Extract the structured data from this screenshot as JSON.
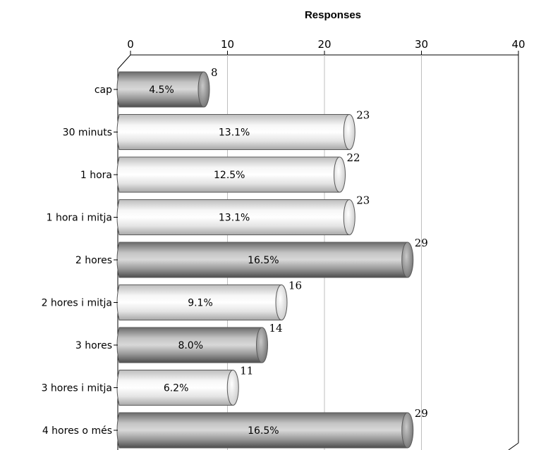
{
  "chart_data": {
    "type": "bar",
    "orientation": "horizontal",
    "title": "Responses",
    "categories": [
      "cap",
      "30 minuts",
      "1 hora",
      "1 hora i mitja",
      "2 hores",
      "2 hores i mitja",
      "3 hores",
      "3 hores i mitja",
      "4 hores o més"
    ],
    "values": [
      8,
      23,
      22,
      23,
      29,
      16,
      14,
      11,
      29
    ],
    "percentages": [
      "4.5%",
      "13.1%",
      "12.5%",
      "13.1%",
      "16.5%",
      "9.1%",
      "8.0%",
      "6.2%",
      "16.5%"
    ],
    "bar_shades": [
      "dark",
      "light",
      "light",
      "light",
      "dark",
      "light",
      "dark",
      "light",
      "dark"
    ],
    "xlim": [
      0,
      40
    ],
    "xticks": [
      0,
      10,
      20,
      30,
      40
    ],
    "axis_position": "top",
    "grid": true,
    "colors": {
      "dark": "#8a8a8a",
      "light": "#f2f2f2",
      "grid": "#bfbfbf",
      "frame": "#000000"
    }
  }
}
